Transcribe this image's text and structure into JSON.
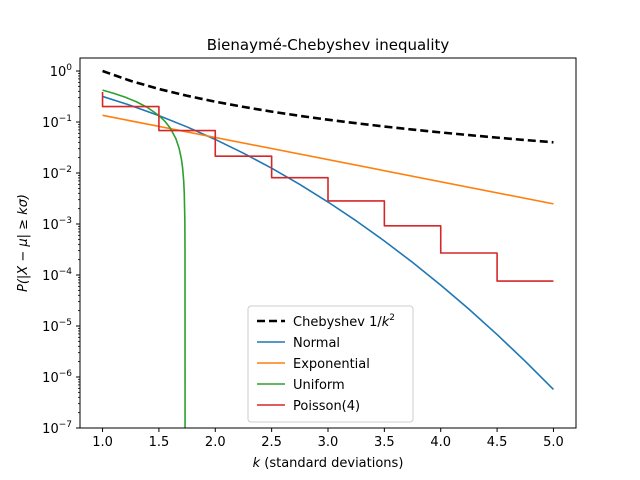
{
  "chart_data": {
    "type": "line",
    "title": "Bienaymé-Chebyshev inequality",
    "xlabel_italic": "k",
    "xlabel_rest": " (standard deviations)",
    "ylabel": "P(|X − μ| ≥ kσ)",
    "xlim": [
      0.8,
      5.2
    ],
    "ylim": [
      1e-07,
      1.8
    ],
    "y_scale": "log",
    "grid": false,
    "legend_position": "lower center",
    "x_ticks": [
      1.0,
      1.5,
      2.0,
      2.5,
      3.0,
      3.5,
      4.0,
      4.5,
      5.0
    ],
    "x_tick_labels": [
      "1.0",
      "1.5",
      "2.0",
      "2.5",
      "3.0",
      "3.5",
      "4.0",
      "4.5",
      "5.0"
    ],
    "y_ticks": [
      1e-07,
      1e-06,
      1e-05,
      0.0001,
      0.001,
      0.01,
      0.1,
      1
    ],
    "y_tick_exponents": [
      "−7",
      "−6",
      "−5",
      "−4",
      "−3",
      "−2",
      "−1",
      "0"
    ],
    "series": [
      {
        "name": "Chebyshev 1/k²",
        "legend_main": "Chebyshev 1/",
        "legend_italic": "k",
        "legend_sup": "2",
        "color": "#000000",
        "dashed": true,
        "x": [
          1.0,
          1.25,
          1.5,
          1.75,
          2.0,
          2.25,
          2.5,
          2.75,
          3.0,
          3.25,
          3.5,
          3.75,
          4.0,
          4.25,
          4.5,
          4.75,
          5.0
        ],
        "y": [
          1.0,
          0.64,
          0.444,
          0.327,
          0.25,
          0.198,
          0.16,
          0.132,
          0.111,
          0.0947,
          0.0816,
          0.0711,
          0.0625,
          0.0554,
          0.0494,
          0.0443,
          0.04
        ]
      },
      {
        "name": "Normal",
        "color": "#1f77b4",
        "dashed": false,
        "x": [
          1.0,
          1.25,
          1.5,
          1.75,
          2.0,
          2.25,
          2.5,
          2.75,
          3.0,
          3.25,
          3.5,
          3.75,
          4.0,
          4.25,
          4.5,
          4.75,
          5.0
        ],
        "y": [
          0.3173,
          0.2113,
          0.1336,
          0.0801,
          0.0455,
          0.02445,
          0.01242,
          0.00596,
          0.0027,
          0.001154,
          0.000465,
          0.0001768,
          6.33e-05,
          2.14e-05,
          6.8e-06,
          2.03e-06,
          5.7e-07
        ]
      },
      {
        "name": "Exponential",
        "color": "#ff7f0e",
        "dashed": false,
        "x": [
          1.0,
          5.0
        ],
        "y": [
          0.1353,
          0.00248
        ]
      },
      {
        "name": "Uniform",
        "color": "#2ca02c",
        "dashed": false,
        "x": [
          1.0,
          1.1,
          1.2,
          1.3,
          1.4,
          1.5,
          1.55,
          1.6,
          1.65,
          1.68,
          1.7,
          1.71,
          1.72,
          1.725,
          1.73,
          1.7315,
          1.732
        ],
        "y": [
          0.4226,
          0.3649,
          0.3072,
          0.2494,
          0.1917,
          0.134,
          0.1051,
          0.0762,
          0.0474,
          0.03,
          0.0185,
          0.0127,
          0.0069,
          0.004,
          0.00116,
          0.00029,
          1e-07
        ]
      },
      {
        "name": "Poisson(4)",
        "color": "#d62728",
        "dashed": false,
        "x": [
          1.0,
          1.0,
          1.5,
          1.5,
          2.0,
          2.0,
          2.5,
          2.5,
          3.0,
          3.0,
          3.5,
          3.5,
          4.0,
          4.0,
          4.5,
          4.5,
          5.0
        ],
        "y": [
          0.3889,
          0.2008,
          0.2008,
          0.0681,
          0.0681,
          0.0214,
          0.0214,
          0.0081,
          0.0081,
          0.00284,
          0.00284,
          0.00092,
          0.00092,
          0.00027,
          0.00027,
          7.6e-05,
          7.6e-05
        ]
      }
    ]
  }
}
